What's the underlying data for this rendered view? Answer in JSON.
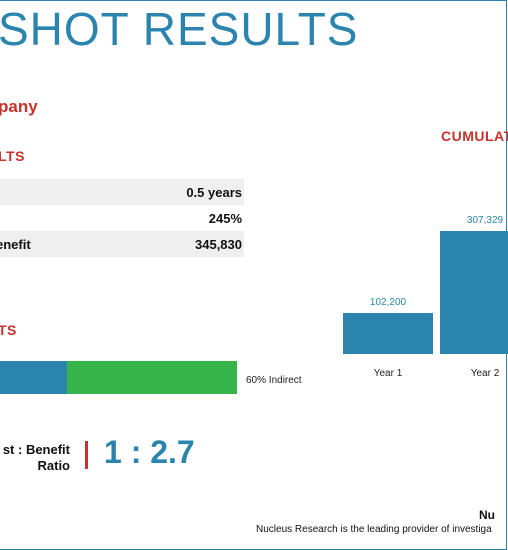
{
  "header": {
    "title": "SHOT RESULTS"
  },
  "company": {
    "name": "pany"
  },
  "results": {
    "heading": "LTS",
    "rows": [
      {
        "label": "",
        "value": "0.5 years"
      },
      {
        "label": "",
        "value": "245%"
      },
      {
        "label": "enefit",
        "value": "345,830"
      }
    ]
  },
  "benefits": {
    "heading": "TS",
    "direct_pct": 40,
    "indirect_pct": 60,
    "indirect_label": "60% Indirect",
    "colors": {
      "direct": "#2a84ad",
      "indirect": "#35b44a"
    }
  },
  "ratio": {
    "label_line1": "st : Benefit",
    "label_line2": "Ratio",
    "value": "1 : 2.7"
  },
  "chart_data": {
    "type": "bar",
    "title": "CUMULAT",
    "categories": [
      "Year 1",
      "Year 2"
    ],
    "values": [
      102200,
      307329
    ],
    "data_labels": [
      "102,200",
      "307,329"
    ],
    "ylim": [
      0,
      320000
    ],
    "grid": false,
    "color": "#2a84ad"
  },
  "footer": {
    "heading": "Nu",
    "text": "Nucleus Research is the leading provider of investiga"
  }
}
